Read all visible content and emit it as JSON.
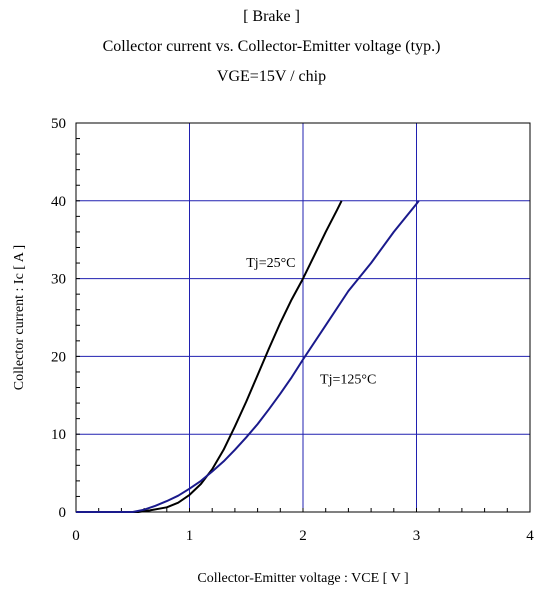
{
  "chart_data": {
    "type": "line",
    "title": "[ Brake ]",
    "subtitle": "Collector current vs. Collector-Emitter voltage (typ.)",
    "condition": "VGE=15V / chip",
    "xlabel": "Collector-Emitter voltage : VCE [ V ]",
    "ylabel": "Collector current : Ic [ A ]",
    "xlim": [
      0,
      4
    ],
    "ylim": [
      0,
      50
    ],
    "xticks": [
      0,
      1,
      2,
      3,
      4
    ],
    "yticks": [
      0,
      10,
      20,
      30,
      40,
      50
    ],
    "grid": true,
    "series": [
      {
        "name": "Tj=25°C",
        "color": "#000000",
        "x": [
          0.0,
          0.55,
          0.65,
          0.8,
          0.9,
          1.0,
          1.1,
          1.2,
          1.3,
          1.4,
          1.5,
          1.6,
          1.7,
          1.8,
          1.9,
          2.0,
          2.1,
          2.2,
          2.3,
          2.34
        ],
        "y": [
          0.0,
          0.0,
          0.2,
          0.6,
          1.2,
          2.2,
          3.6,
          5.5,
          8.0,
          11.0,
          14.2,
          17.6,
          21.0,
          24.3,
          27.3,
          30.0,
          33.0,
          36.0,
          38.8,
          40.0
        ]
      },
      {
        "name": "Tj=125°C",
        "color": "#1a1a8c",
        "x": [
          0.0,
          0.5,
          0.6,
          0.7,
          0.8,
          0.9,
          1.0,
          1.1,
          1.2,
          1.3,
          1.4,
          1.5,
          1.6,
          1.7,
          1.8,
          1.9,
          2.0,
          2.2,
          2.4,
          2.6,
          2.8,
          3.0,
          3.02
        ],
        "y": [
          0.0,
          0.0,
          0.3,
          0.8,
          1.4,
          2.1,
          3.0,
          4.0,
          5.2,
          6.5,
          8.0,
          9.6,
          11.3,
          13.2,
          15.2,
          17.3,
          19.6,
          24.0,
          28.4,
          32.0,
          36.0,
          39.6,
          40.0
        ]
      }
    ],
    "annotations": [
      {
        "text": "Tj=25°C",
        "x": 1.5,
        "y": 31.5
      },
      {
        "text": "Tj=125°C",
        "x": 2.15,
        "y": 16.5
      }
    ]
  }
}
